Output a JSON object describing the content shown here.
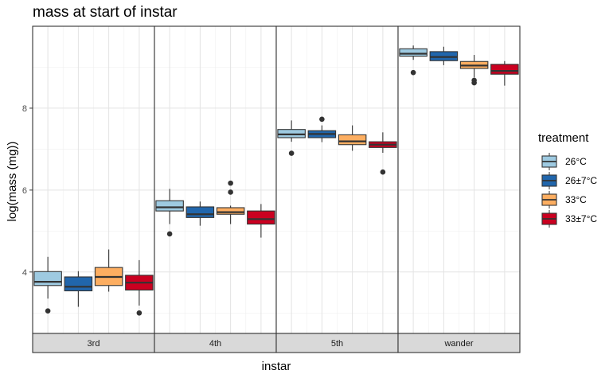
{
  "chart_data": {
    "type": "box",
    "title": "mass at start of instar",
    "xlabel": "instar",
    "ylabel": "log(mass (mg))",
    "ylim": [
      2.5,
      10.0
    ],
    "yticks": [
      4,
      6,
      8
    ],
    "ytick_labels": [
      "4",
      "6",
      "8"
    ],
    "facets": [
      "3rd",
      "4th",
      "5th",
      "wander"
    ],
    "legend": {
      "title": "treatment",
      "position": "right",
      "entries": [
        {
          "label": "26°C",
          "color": "#9ecae1"
        },
        {
          "label": "26±7°C",
          "color": "#2166ac"
        },
        {
          "label": "33°C",
          "color": "#fdae61"
        },
        {
          "label": "33±7°C",
          "color": "#ca0020"
        }
      ]
    },
    "series": [
      {
        "name": "26°C",
        "color": "#9ecae1",
        "boxes": [
          {
            "facet": "3rd",
            "q1": 3.67,
            "median": 3.76,
            "q3": 4.01,
            "lower": 3.35,
            "upper": 4.37,
            "outliers": [
              3.05
            ]
          },
          {
            "facet": "4th",
            "q1": 5.49,
            "median": 5.58,
            "q3": 5.74,
            "lower": 5.17,
            "upper": 6.03,
            "outliers": [
              4.93
            ]
          },
          {
            "facet": "5th",
            "q1": 7.28,
            "median": 7.36,
            "q3": 7.48,
            "lower": 7.18,
            "upper": 7.7,
            "outliers": [
              6.9
            ]
          },
          {
            "facet": "wander",
            "q1": 9.27,
            "median": 9.33,
            "q3": 9.45,
            "lower": 9.18,
            "upper": 9.53,
            "outliers": [
              8.87
            ]
          }
        ]
      },
      {
        "name": "26±7°C",
        "color": "#2166ac",
        "boxes": [
          {
            "facet": "3rd",
            "q1": 3.54,
            "median": 3.64,
            "q3": 3.88,
            "lower": 3.15,
            "upper": 4.02,
            "outliers": []
          },
          {
            "facet": "4th",
            "q1": 5.33,
            "median": 5.41,
            "q3": 5.59,
            "lower": 5.13,
            "upper": 5.72,
            "outliers": []
          },
          {
            "facet": "5th",
            "q1": 7.28,
            "median": 7.37,
            "q3": 7.45,
            "lower": 7.17,
            "upper": 7.58,
            "outliers": [
              7.73
            ]
          },
          {
            "facet": "wander",
            "q1": 9.16,
            "median": 9.25,
            "q3": 9.38,
            "lower": 9.05,
            "upper": 9.5,
            "outliers": []
          }
        ]
      },
      {
        "name": "33°C",
        "color": "#fdae61",
        "boxes": [
          {
            "facet": "3rd",
            "q1": 3.67,
            "median": 3.88,
            "q3": 4.11,
            "lower": 3.52,
            "upper": 4.55,
            "outliers": []
          },
          {
            "facet": "4th",
            "q1": 5.41,
            "median": 5.46,
            "q3": 5.57,
            "lower": 5.17,
            "upper": 5.62,
            "outliers": [
              5.95,
              6.17
            ]
          },
          {
            "facet": "5th",
            "q1": 7.11,
            "median": 7.19,
            "q3": 7.35,
            "lower": 6.96,
            "upper": 7.58,
            "outliers": []
          },
          {
            "facet": "wander",
            "q1": 8.97,
            "median": 9.04,
            "q3": 9.14,
            "lower": 8.75,
            "upper": 9.3,
            "outliers": [
              8.62,
              8.68
            ]
          }
        ]
      },
      {
        "name": "33±7°C",
        "color": "#ca0020",
        "boxes": [
          {
            "facet": "3rd",
            "q1": 3.56,
            "median": 3.74,
            "q3": 3.92,
            "lower": 3.18,
            "upper": 4.29,
            "outliers": [
              3.0
            ]
          },
          {
            "facet": "4th",
            "q1": 5.17,
            "median": 5.29,
            "q3": 5.49,
            "lower": 4.84,
            "upper": 5.66,
            "outliers": []
          },
          {
            "facet": "5th",
            "q1": 7.04,
            "median": 7.11,
            "q3": 7.18,
            "lower": 6.91,
            "upper": 7.41,
            "outliers": [
              6.44
            ]
          },
          {
            "facet": "wander",
            "q1": 8.83,
            "median": 8.91,
            "q3": 9.07,
            "lower": 8.55,
            "upper": 9.15,
            "outliers": []
          }
        ]
      }
    ]
  }
}
